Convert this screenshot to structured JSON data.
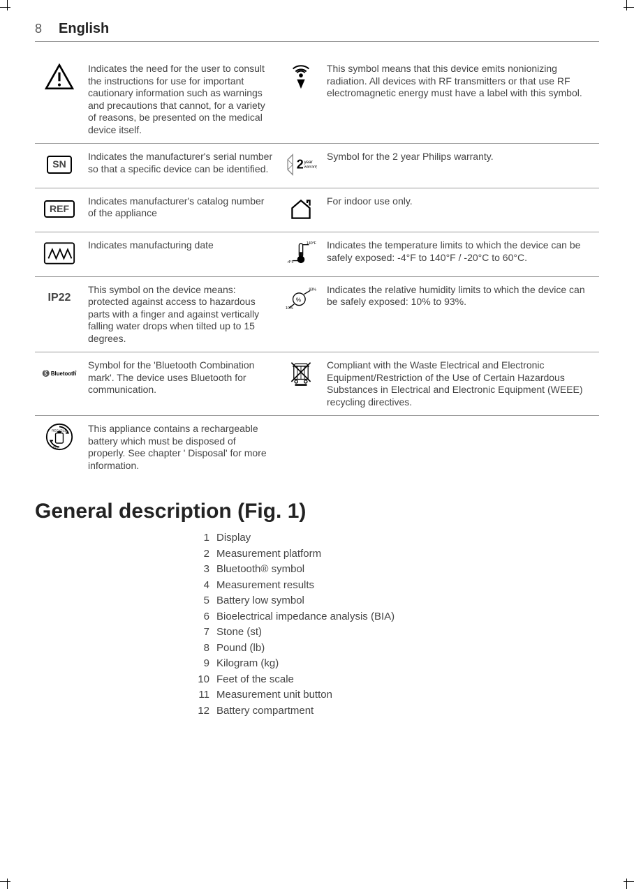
{
  "page": {
    "number": "8",
    "language": "English"
  },
  "symbols": [
    {
      "left_icon": "warning-triangle",
      "left_text": "Indicates the need for the user to consult the instructions for use for important cautionary information such as warnings and precautions that cannot, for a variety of reasons, be presented on the medical device itself.",
      "right_icon": "rf-radiation",
      "right_text": "This symbol means that this device emits nonionizing radiation. All devices with RF transmitters or that use RF electromagnetic energy must have a label with this symbol."
    },
    {
      "left_icon": "sn-box",
      "left_icon_label": "SN",
      "left_text": "Indicates the manufacturer's serial number so that a specific device can be identified.",
      "right_icon": "two-year-warranty",
      "right_text": "Symbol for the 2 year Philips warranty."
    },
    {
      "left_icon": "ref-box",
      "left_icon_label": "REF",
      "left_text": "Indicates manufacturer's catalog number of the appliance",
      "right_icon": "indoor-use",
      "right_text": "For indoor use only."
    },
    {
      "left_icon": "manufacturing-date",
      "left_text": "Indicates manufacturing date",
      "right_icon": "temperature-limits",
      "right_text": "Indicates the temperature limits to which the device can be safely exposed: -4°F to 140°F / -20°C to 60°C."
    },
    {
      "left_icon": "ip22",
      "left_icon_label": "IP22",
      "left_text": "This symbol on the device means: protected against access to hazardous parts with a finger and against vertically falling water drops when tilted up to 15 degrees.",
      "right_icon": "humidity-limits",
      "right_text": "Indicates the relative humidity limits to which the device can be safely exposed: 10% to 93%."
    },
    {
      "left_icon": "bluetooth",
      "left_text": "Symbol for the 'Bluetooth Combination mark'. The device uses Bluetooth for communication.",
      "right_icon": "weee",
      "right_text": "Compliant with the Waste Electrical and Electronic Equipment/Restriction of the Use of Certain Hazardous Substances in Electrical and Electronic Equipment (WEEE) recycling directives."
    },
    {
      "left_icon": "recycle-battery",
      "left_text": "This appliance contains a rechargeable battery which must be disposed of properly. See chapter ' Disposal' for more information.",
      "right_icon": "",
      "right_text": ""
    }
  ],
  "section_title": "General description (Fig. 1)",
  "list": [
    {
      "n": "1",
      "t": "Display"
    },
    {
      "n": "2",
      "t": "Measurement platform"
    },
    {
      "n": "3",
      "t": "Bluetooth® symbol"
    },
    {
      "n": "4",
      "t": "Measurement results"
    },
    {
      "n": "5",
      "t": "Battery low symbol"
    },
    {
      "n": "6",
      "t": "Bioelectrical impedance analysis (BIA)"
    },
    {
      "n": "7",
      "t": "Stone (st)"
    },
    {
      "n": "8",
      "t": "Pound (lb)"
    },
    {
      "n": "9",
      "t": "Kilogram (kg)"
    },
    {
      "n": "10",
      "t": "Feet of the scale"
    },
    {
      "n": "11",
      "t": "Measurement unit button"
    },
    {
      "n": "12",
      "t": "Battery compartment"
    }
  ],
  "icon_svgs": {
    "warning-triangle": "<svg viewBox='0 0 40 36' width='42' height='38'><path d='M20 2 L38 34 L2 34 Z' fill='none' stroke='#000' stroke-width='2.5'/><rect x='18.5' y='12' width='3' height='12' fill='#000'/><circle cx='20' cy='29' r='2' fill='#000'/></svg>",
    "rf-radiation": "<svg viewBox='0 0 40 40' width='38' height='38'><path d='M20 38 L14 24 L26 24 Z' fill='#000'/><circle cx='20' cy='18' r='3' fill='#000'/><path d='M12 12 A12 12 0 0 1 28 12' fill='none' stroke='#000' stroke-width='2'/><path d='M8 8 A18 18 0 0 1 32 8' fill='none' stroke='#000' stroke-width='2'/><path d='M12 24 A12 12 0 0 0 28 24' fill='none' stroke='#000' stroke-width='2' transform='rotate(180 20 18)'/><path d='M14 22 A8 8 0 0 0 26 22' fill='none' stroke='#000' stroke-width='2' transform='rotate(180 20 18)'/></svg>",
    "two-year-warranty": "<svg viewBox='0 0 50 40' width='46' height='36'><path d='M12 4 L4 12 L4 28 L12 36 L12 4 Z' fill='none' stroke='#888' stroke-width='1.5'/><path d='M4 12 L12 20 M4 28 L12 20' stroke='#888' stroke-width='1'/><text x='18' y='26' font-size='20' font-weight='bold' fill='#000'>2</text><text x='30' y='18' font-size='7' fill='#000'>year</text><text x='30' y='25' font-size='6' fill='#000'>warranty</text></svg>",
    "indoor-use": "<svg viewBox='0 0 40 40' width='36' height='36'><path d='M6 18 L20 6 L34 18 L34 34 L6 34 Z' fill='none' stroke='#000' stroke-width='2.5'/><path d='M30 10 L30 6 L34 6 L34 14' fill='none' stroke='#000' stroke-width='2.5'/></svg>",
    "manufacturing-date": "<svg viewBox='0 0 50 36' width='46' height='34'><rect x='2' y='2' width='46' height='32' rx='3' fill='none' stroke='#000' stroke-width='2'/><path d='M8 26 L14 12 L20 26 L26 12 L32 26 L38 12 L44 26' fill='none' stroke='#000' stroke-width='2'/></svg>",
    "temperature-limits": "<svg viewBox='0 0 50 40' width='44' height='36'><rect x='22' y='4' width='6' height='22' rx='3' fill='none' stroke='#000' stroke-width='1.5'/><circle cx='25' cy='30' r='6' fill='#000'/><rect x='23' y='18' width='4' height='10' fill='#000'/><path d='M28 6 L38 6' stroke='#000' stroke-width='1.5'/><text x='34' y='5' font-size='6' fill='#000'>140°F</text><path d='M12 32 L22 32' stroke='#000' stroke-width='1.5'/><text x='2' y='36' font-size='6' fill='#000'>-4°F</text></svg>",
    "humidity-limits": "<svg viewBox='0 0 50 40' width='44' height='36'><circle cx='22' cy='22' r='10' fill='none' stroke='#000' stroke-width='1.5'/><text x='17' y='26' font-size='9' fill='#000'>%</text><path d='M30 14 L40 8' stroke='#000' stroke-width='1.5'/><text x='38' y='8' font-size='6' fill='#000'>93%</text><path d='M14 30 L6 36' stroke='#000' stroke-width='1.5'/><text x='0' y='38' font-size='6' fill='#000'>10%</text></svg>",
    "weee": "<svg viewBox='0 0 40 44' width='34' height='38'><rect x='8' y='10' width='24' height='22' fill='none' stroke='#000' stroke-width='1.5'/><path d='M14 10 L14 32 M20 10 L20 32 M26 10 L26 32' stroke='#000' stroke-width='1'/><path d='M6 10 L34 10 M10 6 L30 6 L32 10 M8 10 L10 6' stroke='#000' stroke-width='1.5' fill='none'/><circle cx='12' cy='36' r='2.5' fill='none' stroke='#000' stroke-width='1.5'/><circle cx='28' cy='36' r='2.5' fill='none' stroke='#000' stroke-width='1.5'/><line x1='4' y1='4' x2='36' y2='36' stroke='#000' stroke-width='2'/><line x1='36' y1='4' x2='4' y2='36' stroke='#000' stroke-width='2'/><rect x='10' y='40' width='20' height='3' fill='#000'/></svg>",
    "recycle-battery": "<svg viewBox='0 0 44 44' width='40' height='40'><circle cx='22' cy='22' r='20' fill='none' stroke='#000' stroke-width='2'/><path d='M22 6 A16 16 0 0 1 36 16 L32 16 M22 38 A16 16 0 0 1 8 28 L12 28' fill='none' stroke='#000' stroke-width='2'/><text x='10' y='14' font-size='5' fill='#000'>RECYCLE</text><rect x='16' y='16' width='12' height='16' rx='2' fill='none' stroke='#000' stroke-width='1.5'/><rect x='19' y='13' width='6' height='3' fill='#000'/><text x='12' y='40' font-size='5' fill='#000'>822</text></svg>",
    "bluetooth": "<svg viewBox='0 0 70 20' width='64' height='18'><circle cx='8' cy='10' r='7' fill='#555'/><path d='M6 5 L10 8 L6 11 L10 14 L6 17 M6 5 L6 17' stroke='#fff' stroke-width='1' fill='none' transform='translate(0,-2)'/><text x='18' y='14' font-size='11' font-weight='bold' fill='#000'>Bluetooth</text><text x='66' y='8' font-size='5' fill='#000'>®</text></svg>"
  }
}
